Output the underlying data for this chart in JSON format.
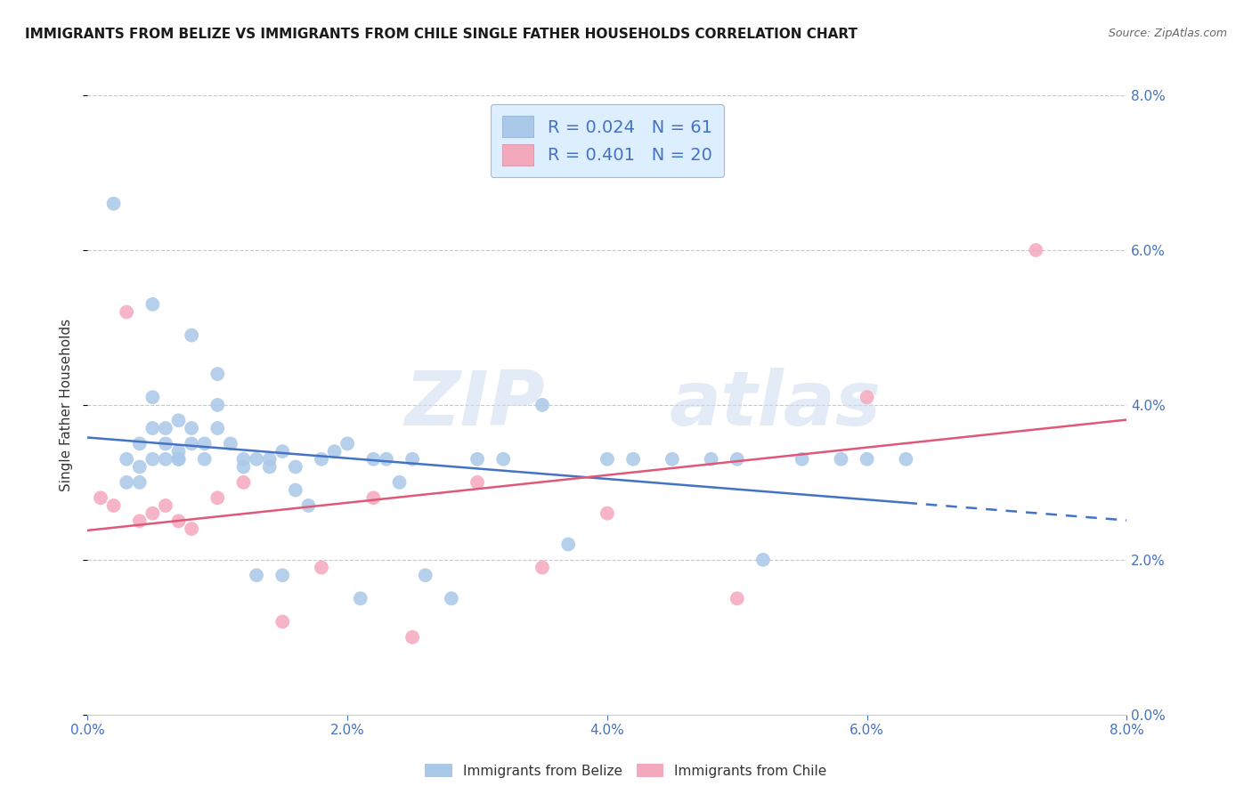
{
  "title": "IMMIGRANTS FROM BELIZE VS IMMIGRANTS FROM CHILE SINGLE FATHER HOUSEHOLDS CORRELATION CHART",
  "source": "Source: ZipAtlas.com",
  "ylabel_label": "Single Father Households",
  "xmin": 0.0,
  "xmax": 0.08,
  "ymin": 0.0,
  "ymax": 0.08,
  "yticks": [
    0.0,
    0.02,
    0.04,
    0.06,
    0.08
  ],
  "xticks": [
    0.0,
    0.02,
    0.04,
    0.06,
    0.08
  ],
  "belize_R": 0.024,
  "belize_N": 61,
  "chile_R": 0.401,
  "chile_N": 20,
  "belize_color": "#aac8e8",
  "chile_color": "#f4a8bc",
  "belize_line_color": "#4472c4",
  "chile_line_color": "#e05878",
  "belize_scatter_x": [
    0.002,
    0.003,
    0.003,
    0.004,
    0.004,
    0.004,
    0.005,
    0.005,
    0.005,
    0.005,
    0.006,
    0.006,
    0.006,
    0.007,
    0.007,
    0.007,
    0.007,
    0.008,
    0.008,
    0.008,
    0.009,
    0.009,
    0.01,
    0.01,
    0.01,
    0.011,
    0.012,
    0.012,
    0.013,
    0.013,
    0.014,
    0.014,
    0.015,
    0.015,
    0.016,
    0.016,
    0.017,
    0.018,
    0.019,
    0.02,
    0.021,
    0.022,
    0.023,
    0.024,
    0.025,
    0.026,
    0.028,
    0.03,
    0.032,
    0.035,
    0.037,
    0.04,
    0.042,
    0.045,
    0.048,
    0.05,
    0.052,
    0.055,
    0.058,
    0.06,
    0.063
  ],
  "belize_scatter_y": [
    0.066,
    0.033,
    0.03,
    0.035,
    0.032,
    0.03,
    0.053,
    0.041,
    0.037,
    0.033,
    0.037,
    0.035,
    0.033,
    0.038,
    0.034,
    0.033,
    0.033,
    0.049,
    0.037,
    0.035,
    0.035,
    0.033,
    0.044,
    0.04,
    0.037,
    0.035,
    0.033,
    0.032,
    0.033,
    0.018,
    0.033,
    0.032,
    0.034,
    0.018,
    0.032,
    0.029,
    0.027,
    0.033,
    0.034,
    0.035,
    0.015,
    0.033,
    0.033,
    0.03,
    0.033,
    0.018,
    0.015,
    0.033,
    0.033,
    0.04,
    0.022,
    0.033,
    0.033,
    0.033,
    0.033,
    0.033,
    0.02,
    0.033,
    0.033,
    0.033,
    0.033
  ],
  "chile_scatter_x": [
    0.001,
    0.002,
    0.003,
    0.004,
    0.005,
    0.006,
    0.007,
    0.008,
    0.01,
    0.012,
    0.015,
    0.018,
    0.022,
    0.025,
    0.03,
    0.035,
    0.04,
    0.05,
    0.06,
    0.073
  ],
  "chile_scatter_y": [
    0.028,
    0.027,
    0.052,
    0.025,
    0.026,
    0.027,
    0.025,
    0.024,
    0.028,
    0.03,
    0.012,
    0.019,
    0.028,
    0.01,
    0.03,
    0.019,
    0.026,
    0.015,
    0.041,
    0.06
  ],
  "watermark_line1": "ZIP",
  "watermark_line2": "atlas",
  "background_color": "#ffffff",
  "grid_color": "#c8c8c8"
}
